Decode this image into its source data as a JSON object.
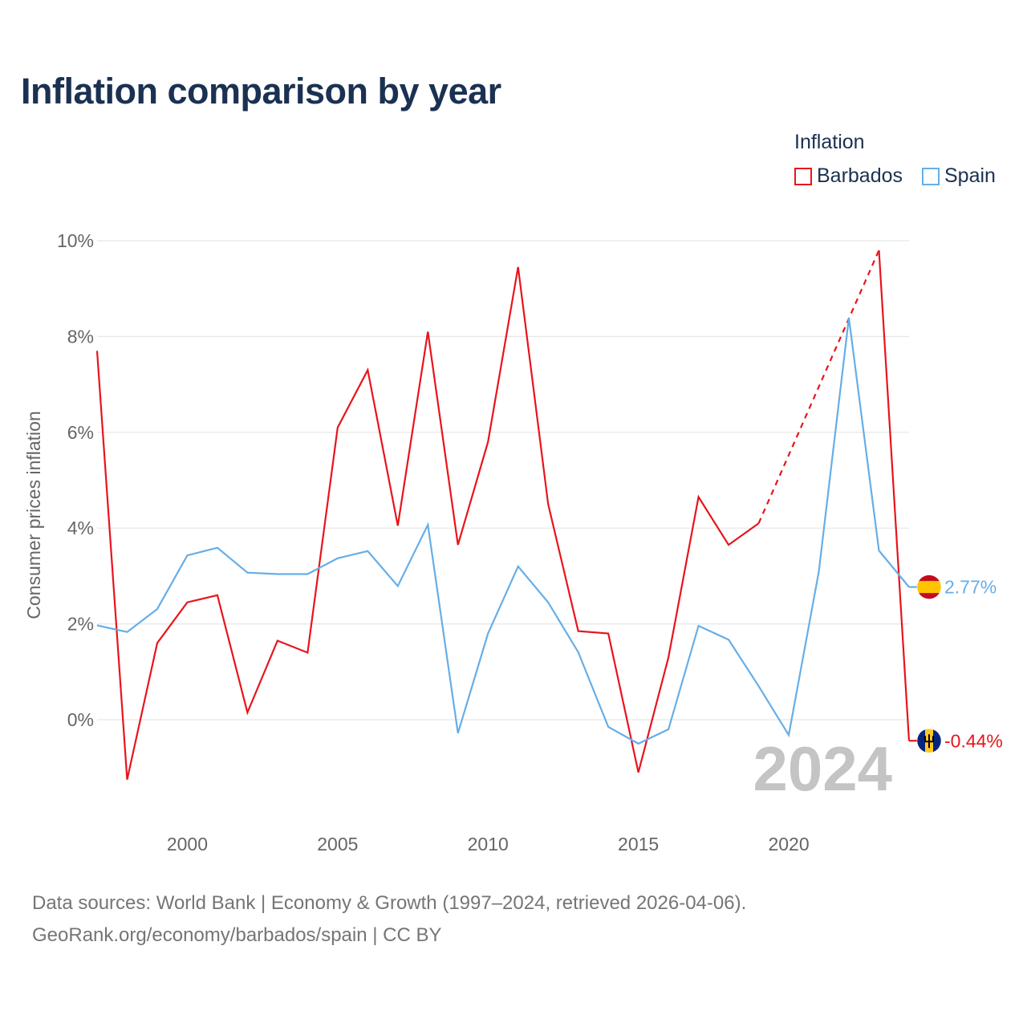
{
  "title": "Inflation comparison by year",
  "legend": {
    "title": "Inflation",
    "items": [
      {
        "label": "Barbados",
        "color": "#e8141b"
      },
      {
        "label": "Spain",
        "color": "#66aee8"
      }
    ]
  },
  "sources": {
    "line1": "Data sources: World Bank | Economy & Growth (1997–2024, retrieved 2026-04-06).",
    "line2": "GeoRank.org/economy/barbados/spain | CC BY"
  },
  "chart_data": {
    "type": "line",
    "title": "Inflation comparison by year",
    "xlabel": "",
    "ylabel": "Consumer prices inflation",
    "xlim": [
      1997,
      2024
    ],
    "ylim": [
      -1.9,
      10.2
    ],
    "xticks": [
      2000,
      2005,
      2010,
      2015,
      2020
    ],
    "xtick_labels": [
      "2000",
      "2005",
      "2010",
      "2015",
      "2020"
    ],
    "yticks": [
      0,
      2,
      4,
      6,
      8,
      10
    ],
    "ytick_labels": [
      "0%",
      "2%",
      "4%",
      "6%",
      "8%",
      "10%"
    ],
    "grid": true,
    "legend_position": "top-right",
    "current_year_label": "2024",
    "x": [
      1997,
      1998,
      1999,
      2000,
      2001,
      2002,
      2003,
      2004,
      2005,
      2006,
      2007,
      2008,
      2009,
      2010,
      2011,
      2012,
      2013,
      2014,
      2015,
      2016,
      2017,
      2018,
      2019,
      2020,
      2021,
      2022,
      2023,
      2024
    ],
    "series": [
      {
        "name": "Barbados",
        "color": "#e8141b",
        "values": [
          7.7,
          -1.25,
          1.6,
          2.45,
          2.6,
          0.15,
          1.65,
          1.4,
          6.1,
          7.3,
          4.05,
          8.1,
          3.65,
          5.8,
          9.45,
          4.5,
          1.85,
          1.8,
          -1.1,
          1.3,
          4.65,
          3.65,
          4.1,
          null,
          null,
          null,
          9.8,
          -0.44
        ],
        "gap_segment": {
          "from_year": 2019,
          "to_year": 2023,
          "style": "dashed"
        },
        "end_label": "-0.44%",
        "flag": "barbados-flag"
      },
      {
        "name": "Spain",
        "color": "#66aee8",
        "values": [
          1.97,
          1.83,
          2.31,
          3.43,
          3.59,
          3.07,
          3.04,
          3.04,
          3.37,
          3.52,
          2.79,
          4.07,
          -0.28,
          1.8,
          3.2,
          2.45,
          1.41,
          -0.15,
          -0.5,
          -0.2,
          1.96,
          1.67,
          0.7,
          -0.32,
          3.09,
          8.39,
          3.53,
          2.77
        ],
        "end_label": "2.77%",
        "flag": "spain-flag"
      }
    ]
  }
}
